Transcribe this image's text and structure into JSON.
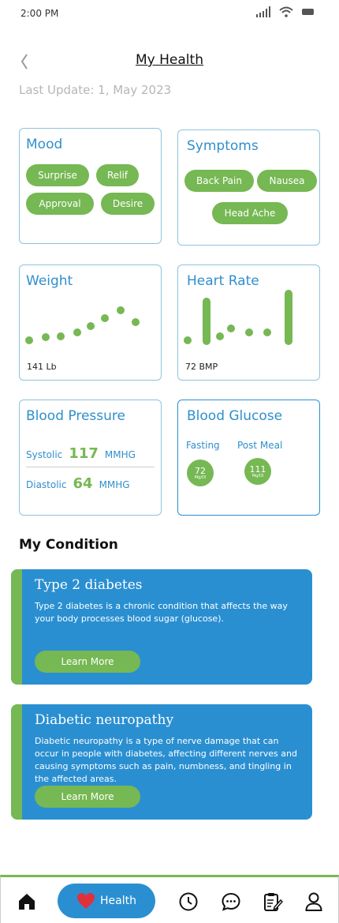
{
  "status_bar": {
    "time": "2:00 PM"
  },
  "header": {
    "title": "My Health",
    "last_update": "Last Update: 1, May 2023"
  },
  "mood": {
    "title": "Mood",
    "tags": [
      "Surprise",
      "Relif",
      "Approval",
      "Desire"
    ]
  },
  "symptoms": {
    "title": "Symptoms",
    "tags": [
      "Back Pain",
      "Nausea",
      "Head Ache"
    ]
  },
  "weight": {
    "title": "Weight",
    "value_label": "141 Lb"
  },
  "heart_rate": {
    "title": "Heart Rate",
    "value_label": "72 BMP"
  },
  "blood_pressure": {
    "title": "Blood Pressure",
    "systolic": {
      "label": "Systolic",
      "value": "117",
      "unit": "MMHG"
    },
    "diastolic": {
      "label": "Diastolic",
      "value": "64",
      "unit": "MMHG"
    }
  },
  "blood_glucose": {
    "title": "Blood Glucose",
    "fasting": {
      "label": "Fasting",
      "value": "72",
      "unit": "Mg/Dl"
    },
    "post_meal": {
      "label": "Post Meal",
      "value": "111",
      "unit": "Mg/Dl"
    }
  },
  "conditions": {
    "title": "My Condition",
    "items": [
      {
        "name": "Type 2 diabetes",
        "description": "Type 2 diabetes is a chronic condition that affects the way your body processes blood sugar (glucose).",
        "button": "Learn More"
      },
      {
        "name": "Diabetic neuropathy",
        "description": "Diabetic neuropathy is a type of nerve damage that can occur in people with diabetes, affecting different nerves and causing symptoms such as pain, numbness, and tingling in the affected areas.",
        "button": "Learn More"
      }
    ]
  },
  "bottom_nav": {
    "active_label": "Health",
    "icons": [
      "home-icon",
      "heart-icon",
      "clock-icon",
      "chat-icon",
      "clipboard-icon",
      "profile-icon"
    ]
  },
  "colors": {
    "accent_blue": "#2a8fd1",
    "accent_green": "#76b853",
    "border": "#8ec3dd"
  }
}
